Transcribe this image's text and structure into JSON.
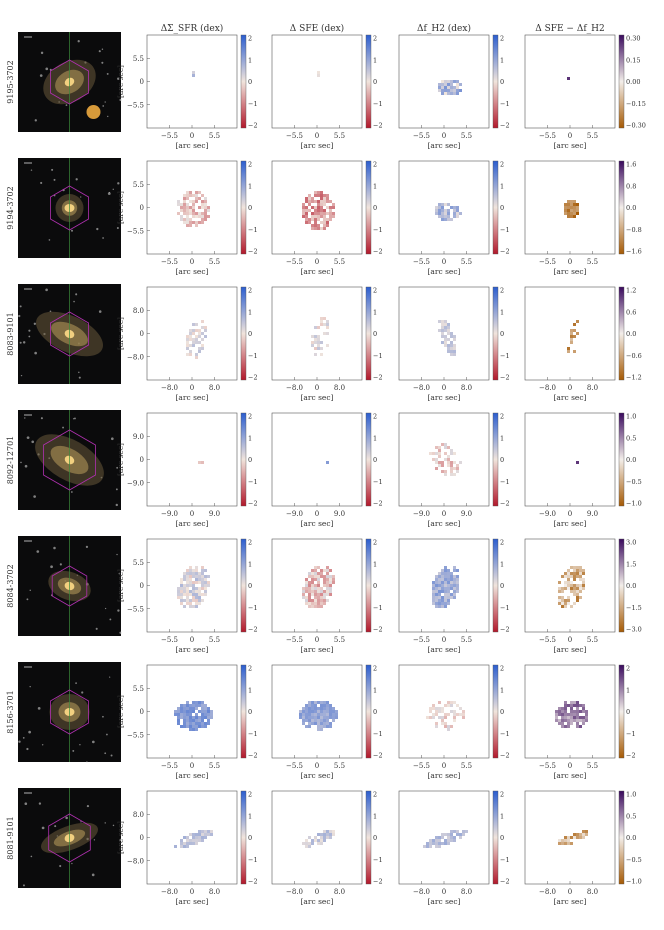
{
  "column_headers": [
    "ΔΣ_SFR (dex)",
    "Δ SFE (dex)",
    "Δf_H2 (dex)",
    "Δ SFE − Δf_H2"
  ],
  "axis_label": "[arc sec]",
  "rows": [
    {
      "galaxy_id": "9195-3702",
      "ticks": [
        "5.5",
        "0",
        "−5.5"
      ],
      "xticks": [
        "−5.5",
        "0",
        "5.5"
      ],
      "diff_cbar": [
        "0.30",
        "0.15",
        "0.00",
        "−0.15",
        "−0.30"
      ]
    },
    {
      "galaxy_id": "9194-3702",
      "ticks": [
        "5.5",
        "0",
        "−5.5"
      ],
      "xticks": [
        "−5.5",
        "0",
        "5.5"
      ],
      "diff_cbar": [
        "1.6",
        "0.8",
        "0.0",
        "−0.8",
        "−1.6"
      ]
    },
    {
      "galaxy_id": "8083-9101",
      "ticks": [
        "8.0",
        "0",
        "−8.0"
      ],
      "xticks": [
        "−8.0",
        "0",
        "8.0"
      ],
      "diff_cbar": [
        "1.2",
        "0.6",
        "0.0",
        "−0.6",
        "−1.2"
      ]
    },
    {
      "galaxy_id": "8092-12701",
      "ticks": [
        "9.0",
        "0",
        "−9.0"
      ],
      "xticks": [
        "−9.0",
        "0",
        "9.0"
      ],
      "diff_cbar": [
        "1.0",
        "0.5",
        "0.0",
        "−0.5",
        "−1.0"
      ]
    },
    {
      "galaxy_id": "8084-3702",
      "ticks": [
        "5.5",
        "0",
        "−5.5"
      ],
      "xticks": [
        "−5.5",
        "0",
        "5.5"
      ],
      "diff_cbar": [
        "3.0",
        "1.5",
        "0.0",
        "−1.5",
        "−3.0"
      ]
    },
    {
      "galaxy_id": "8156-3701",
      "ticks": [
        "5.5",
        "0",
        "−5.5"
      ],
      "xticks": [
        "−5.5",
        "0",
        "5.5"
      ],
      "diff_cbar": [
        "2",
        "1",
        "0",
        "−1",
        "−2"
      ]
    },
    {
      "galaxy_id": "8081-9101",
      "ticks": [
        "8.0",
        "0",
        "−8.0"
      ],
      "xticks": [
        "−8.0",
        "0",
        "8.0"
      ],
      "diff_cbar": [
        "1.0",
        "0.5",
        "0.0",
        "−0.5",
        "−1.0"
      ]
    }
  ],
  "main_cbar_ticks": [
    "2",
    "1",
    "0",
    "−1",
    "−2"
  ],
  "colormaps": {
    "diverging": [
      "#b2182b",
      "#f0e4dc",
      "#2c5ecf"
    ],
    "puor": [
      "#a65a05",
      "#f3eeea",
      "#3a0a5e"
    ]
  }
}
